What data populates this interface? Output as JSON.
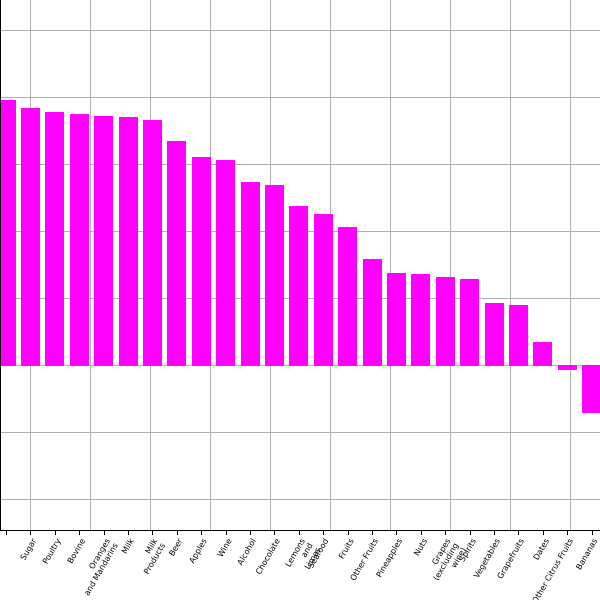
{
  "chart_data": {
    "type": "bar",
    "title": "",
    "xlabel": "",
    "ylabel": "",
    "legend": null,
    "grid": true,
    "bar_color": "#ff00ff",
    "grid_color": "#b0b0b0",
    "axis_color": "#000000",
    "background": "#ffffff",
    "y_axis": {
      "tick_labels_visible": false,
      "gridline_values": [
        5,
        4,
        3,
        2,
        1,
        0,
        -1,
        -2
      ],
      "ylim": [
        -2.46,
        5.45
      ]
    },
    "categories": [
      "",
      "Sugar",
      "Poultry",
      "Bovine",
      "Oranges\nand Mandarins",
      "Milk",
      "Milk\nProducts",
      "Beer",
      "Apples",
      "Wine",
      "Alcohol",
      "Chocolate",
      "Lemons\nand\nLimes",
      "Seafood",
      "Fruits",
      "Other Fruits",
      "Pineapples",
      "Nuts",
      "Grapes\n(excluding\nwine)",
      "Spirits",
      "Vegetables",
      "Grapefruits",
      "Dates",
      "Other Citrus Fruits",
      "Bananas"
    ],
    "values": [
      3.95,
      3.84,
      3.77,
      3.74,
      3.72,
      3.7,
      3.66,
      3.35,
      3.1,
      3.06,
      2.73,
      2.68,
      2.38,
      2.26,
      2.06,
      1.58,
      1.37,
      1.36,
      1.32,
      1.28,
      0.93,
      0.9,
      0.34,
      -0.07,
      -0.72
    ]
  }
}
